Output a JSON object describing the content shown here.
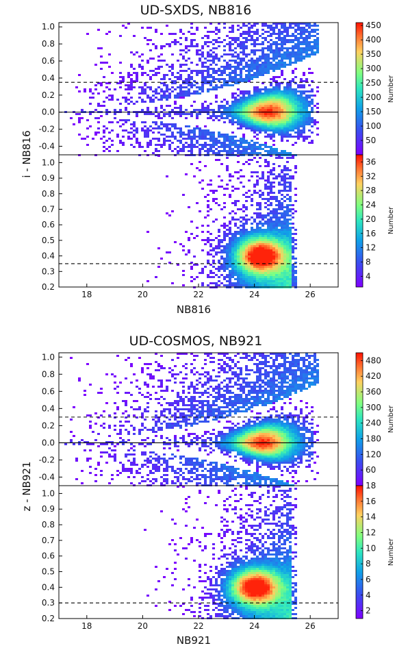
{
  "chart_data": [
    {
      "type": "heatmap",
      "title": "UD-SXDS, NB816",
      "ylabel": "i - NB816",
      "xlabel": "NB816",
      "xlim": [
        17,
        27
      ],
      "x_ticks": [
        "18",
        "20",
        "22",
        "24",
        "26"
      ],
      "panels": [
        {
          "name": "upper",
          "ylim": [
            -0.5,
            1.05
          ],
          "y_ticks": [
            "-0.4",
            "-0.2",
            "0.0",
            "0.2",
            "0.4",
            "0.6",
            "0.8",
            "1.0"
          ],
          "hlines": [
            {
              "y": 0.0,
              "style": "solid"
            },
            {
              "y": 0.35,
              "style": "dashed"
            }
          ],
          "density": {
            "peak_x": 24.5,
            "peak_y": 0.0,
            "x_min": 17.2,
            "x_max": 26.3,
            "x_spread_min": 0.03,
            "x_spread_max": 0.35
          },
          "colorbar": {
            "label": "Number",
            "range": [
              0,
              460
            ],
            "ticks": [
              "50",
              "100",
              "150",
              "200",
              "250",
              "300",
              "350",
              "400",
              "450"
            ],
            "tick_values": [
              50,
              100,
              150,
              200,
              250,
              300,
              350,
              400,
              450
            ]
          }
        },
        {
          "name": "lower",
          "ylim": [
            0.2,
            1.05
          ],
          "y_ticks": [
            "0.2",
            "0.3",
            "0.4",
            "0.5",
            "0.6",
            "0.7",
            "0.8",
            "0.9",
            "1.0"
          ],
          "hlines": [
            {
              "y": 0.35,
              "style": "dashed"
            }
          ],
          "density": {
            "peak_x": 24.2,
            "peak_y": 0.4,
            "x_min": 19.5,
            "x_max": 25.5
          },
          "colorbar": {
            "label": "Number",
            "range": [
              1,
              38
            ],
            "ticks": [
              "4",
              "8",
              "12",
              "16",
              "20",
              "24",
              "28",
              "32",
              "36"
            ],
            "tick_values": [
              4,
              8,
              12,
              16,
              20,
              24,
              28,
              32,
              36
            ]
          }
        }
      ]
    },
    {
      "type": "heatmap",
      "title": "UD-COSMOS, NB921",
      "ylabel": "z - NB921",
      "xlabel": "NB921",
      "xlim": [
        17,
        27
      ],
      "x_ticks": [
        "18",
        "20",
        "22",
        "24",
        "26"
      ],
      "panels": [
        {
          "name": "upper",
          "ylim": [
            -0.5,
            1.05
          ],
          "y_ticks": [
            "-0.4",
            "-0.2",
            "0.0",
            "0.2",
            "0.4",
            "0.6",
            "0.8",
            "1.0"
          ],
          "hlines": [
            {
              "y": 0.0,
              "style": "solid"
            },
            {
              "y": 0.3,
              "style": "dashed"
            }
          ],
          "density": {
            "peak_x": 24.3,
            "peak_y": 0.0,
            "x_min": 17.2,
            "x_max": 26.3,
            "x_spread_min": 0.03,
            "x_spread_max": 0.35
          },
          "colorbar": {
            "label": "Number",
            "range": [
              0,
              510
            ],
            "ticks": [
              "60",
              "120",
              "180",
              "240",
              "300",
              "360",
              "420",
              "480"
            ],
            "tick_values": [
              60,
              120,
              180,
              240,
              300,
              360,
              420,
              480
            ]
          }
        },
        {
          "name": "lower",
          "ylim": [
            0.2,
            1.05
          ],
          "y_ticks": [
            "0.2",
            "0.3",
            "0.4",
            "0.5",
            "0.6",
            "0.7",
            "0.8",
            "0.9",
            "1.0"
          ],
          "hlines": [
            {
              "y": 0.3,
              "style": "dashed"
            }
          ],
          "density": {
            "peak_x": 24.0,
            "peak_y": 0.4,
            "x_min": 19.5,
            "x_max": 25.5
          },
          "colorbar": {
            "label": "Number",
            "range": [
              1,
              18
            ],
            "ticks": [
              "2",
              "4",
              "6",
              "8",
              "10",
              "12",
              "14",
              "16",
              "18"
            ],
            "tick_values": [
              2,
              4,
              6,
              8,
              10,
              12,
              14,
              16,
              18
            ]
          }
        }
      ]
    }
  ]
}
